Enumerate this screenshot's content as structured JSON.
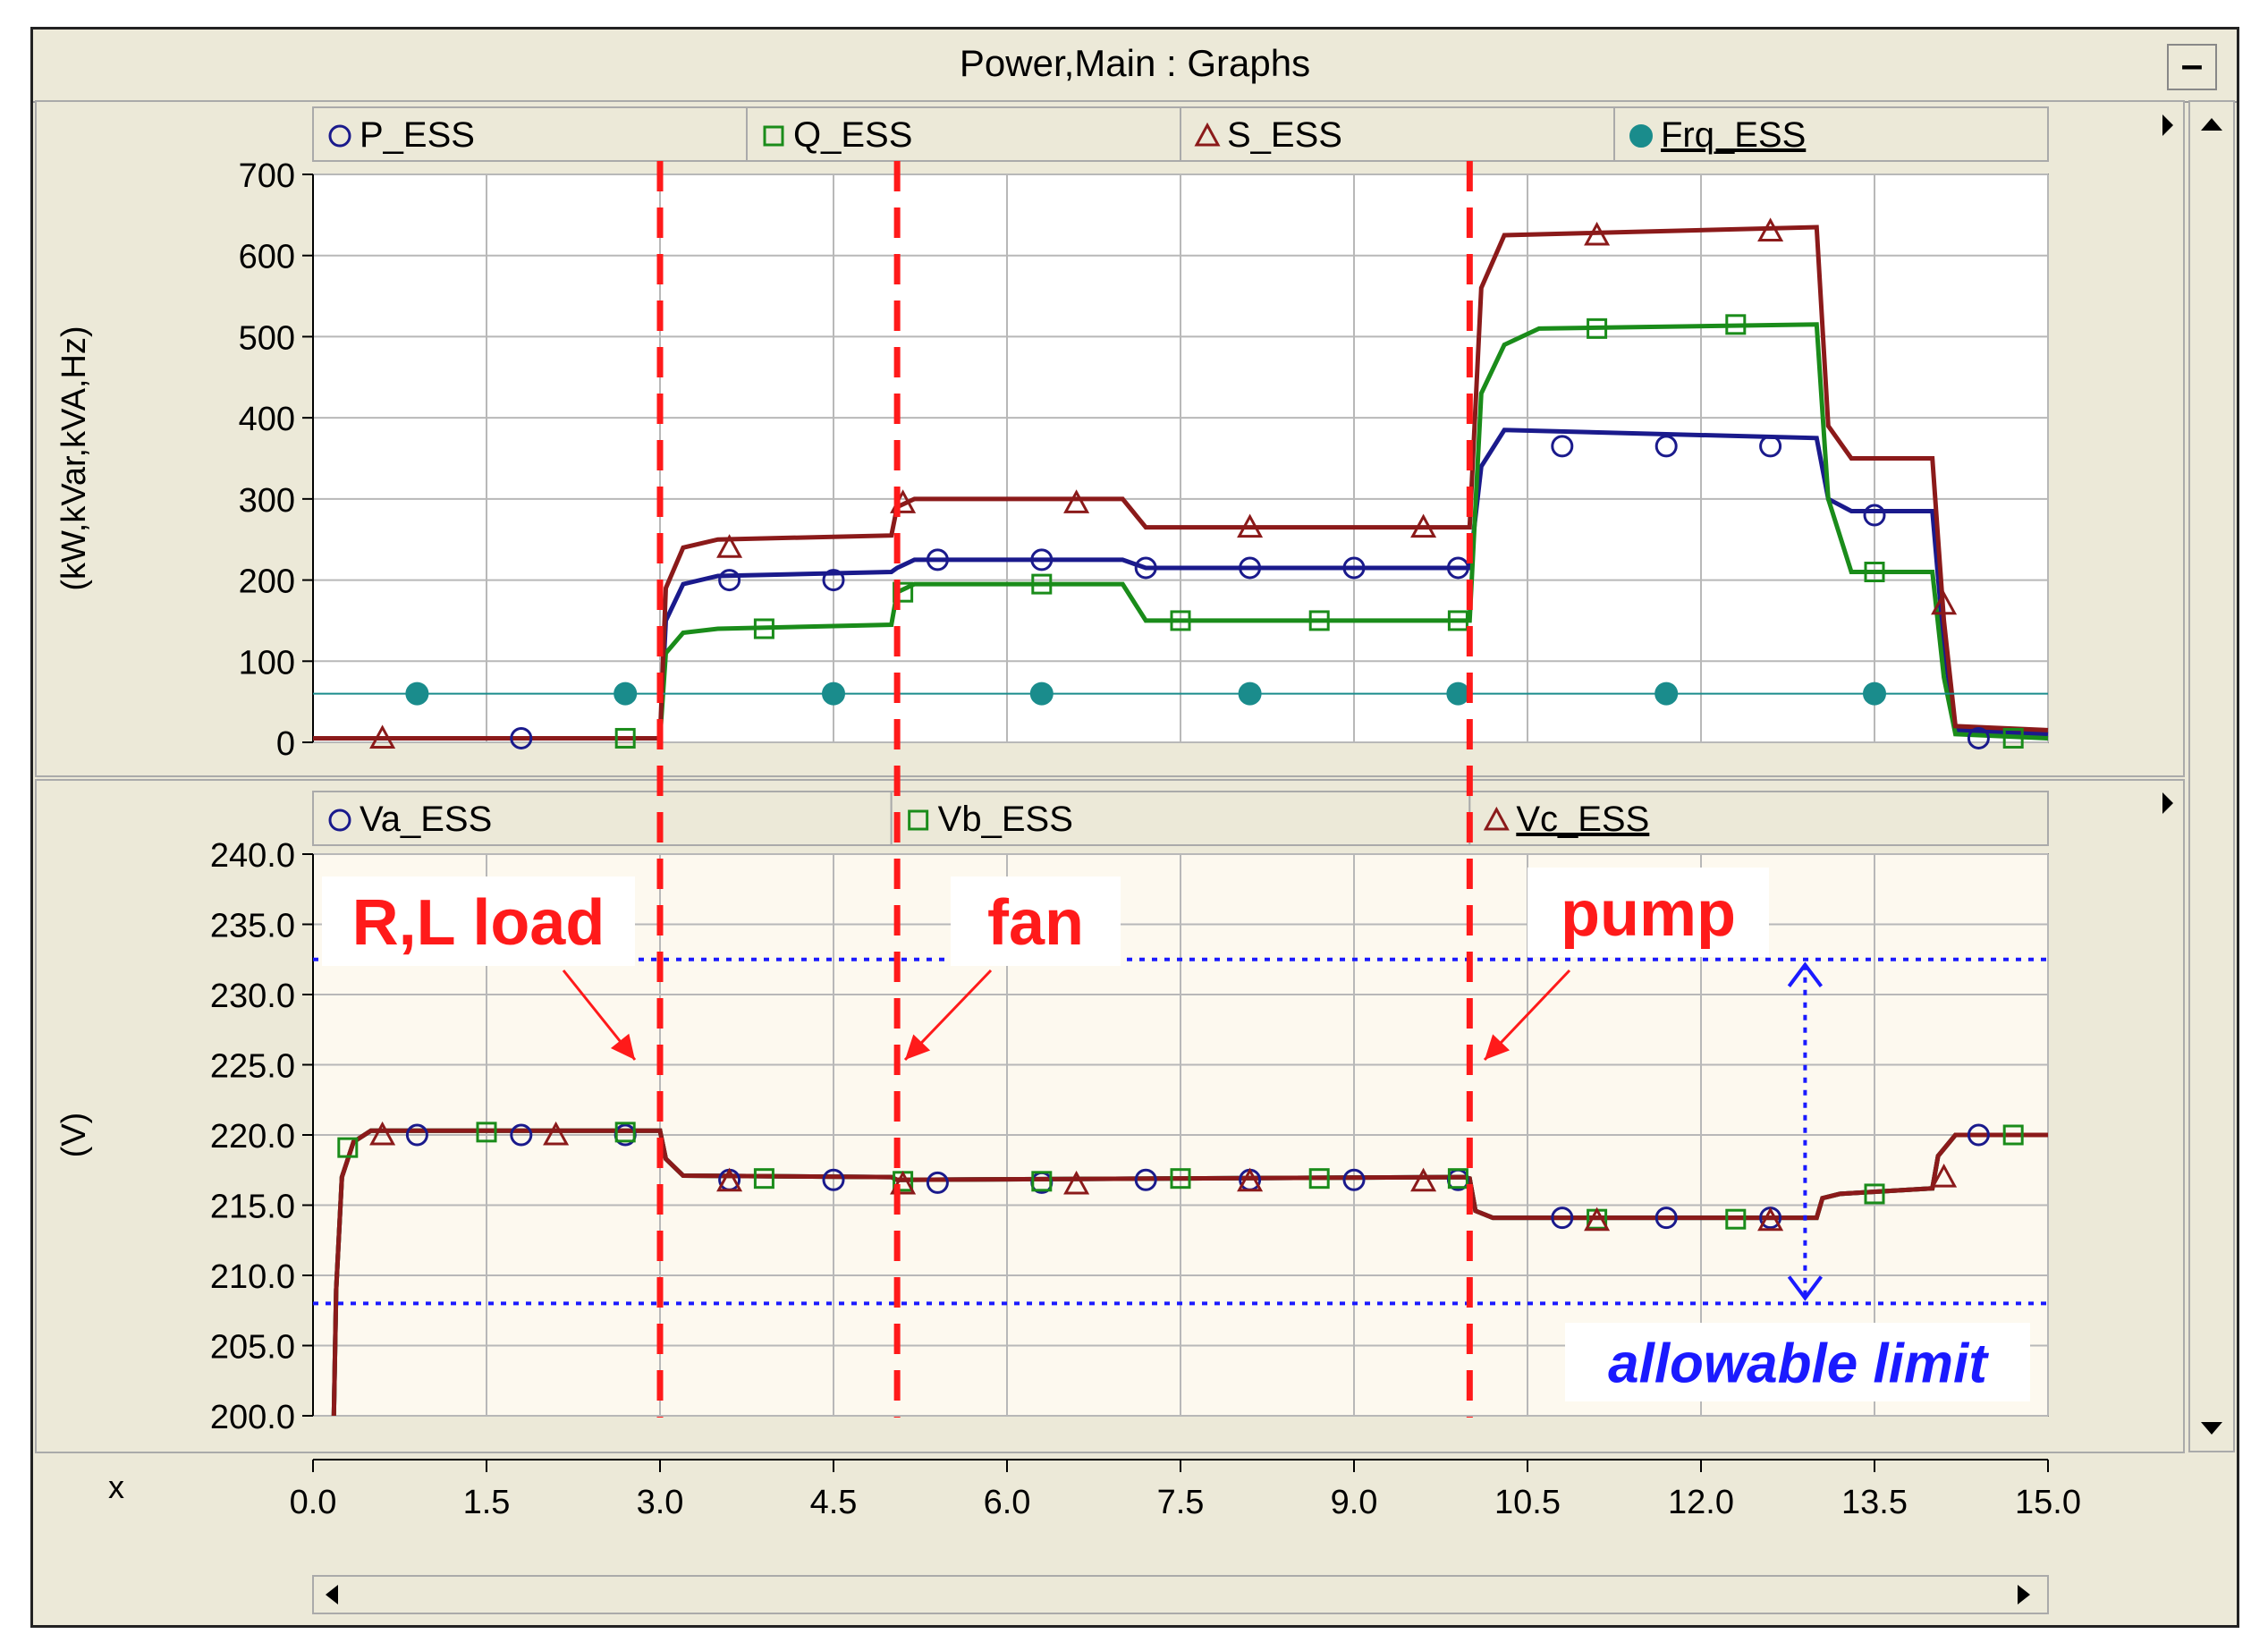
{
  "window": {
    "title": "Power,Main : Graphs",
    "minimize_label": "–"
  },
  "chart_data": [
    {
      "type": "line",
      "ylabel": "(kW,kVar,kVA,Hz)",
      "ylim": [
        0,
        700
      ],
      "yticks": [
        "700",
        "600",
        "500",
        "400",
        "300",
        "200",
        "100",
        "0"
      ],
      "ytick_values": [
        700,
        600,
        500,
        400,
        300,
        200,
        100,
        0
      ],
      "xlim": [
        0,
        15
      ],
      "grid": true,
      "legend_position": "top",
      "series": [
        {
          "name": "P_ESS",
          "color": "#1a1a8c",
          "marker": "circle-open",
          "x": [
            0,
            3.0,
            3.05,
            3.2,
            3.5,
            5.0,
            5.05,
            5.2,
            7.0,
            7.2,
            9.95,
            10.0,
            10.1,
            10.3,
            13.0,
            13.1,
            13.3,
            14.0,
            14.1,
            14.2,
            15.0
          ],
          "y": [
            5,
            5,
            150,
            195,
            205,
            210,
            215,
            225,
            225,
            215,
            215,
            215,
            340,
            385,
            375,
            300,
            285,
            285,
            120,
            15,
            10
          ]
        },
        {
          "name": "Q_ESS",
          "color": "#1a8c1a",
          "marker": "square-open",
          "x": [
            0,
            3.0,
            3.05,
            3.2,
            3.5,
            5.0,
            5.05,
            5.2,
            7.0,
            7.2,
            9.95,
            10.0,
            10.1,
            10.3,
            10.6,
            13.0,
            13.1,
            13.3,
            14.0,
            14.1,
            14.2,
            15.0
          ],
          "y": [
            5,
            5,
            110,
            135,
            140,
            145,
            185,
            195,
            195,
            150,
            150,
            150,
            430,
            490,
            510,
            515,
            300,
            210,
            210,
            80,
            10,
            5
          ]
        },
        {
          "name": "S_ESS",
          "color": "#8b1a1a",
          "marker": "triangle-open",
          "x": [
            0,
            3.0,
            3.05,
            3.2,
            3.5,
            5.0,
            5.05,
            5.2,
            7.0,
            7.2,
            9.95,
            10.0,
            10.1,
            10.3,
            13.0,
            13.1,
            13.3,
            14.0,
            14.1,
            14.2,
            15.0
          ],
          "y": [
            5,
            5,
            190,
            240,
            250,
            255,
            290,
            300,
            300,
            265,
            265,
            265,
            560,
            625,
            635,
            390,
            350,
            350,
            150,
            20,
            15
          ]
        },
        {
          "name": "Frq_ESS",
          "color": "#1a8c8c",
          "marker": "circle-filled",
          "x": [
            0,
            15
          ],
          "y": [
            60,
            60
          ]
        }
      ],
      "markers": {
        "P_ESS": {
          "x": [
            1.8,
            3.6,
            4.5,
            5.4,
            6.3,
            7.2,
            8.1,
            9.0,
            9.9,
            10.8,
            11.7,
            12.6,
            13.5,
            14.4
          ],
          "y": [
            5,
            200,
            200,
            225,
            225,
            215,
            215,
            215,
            215,
            365,
            365,
            365,
            280,
            5
          ]
        },
        "Q_ESS": {
          "x": [
            2.7,
            3.9,
            5.1,
            6.3,
            7.5,
            8.7,
            9.9,
            11.1,
            12.3,
            13.5,
            14.7
          ],
          "y": [
            5,
            140,
            185,
            195,
            150,
            150,
            150,
            510,
            515,
            210,
            5
          ]
        },
        "S_ESS": {
          "x": [
            0.6,
            3.6,
            5.1,
            6.6,
            8.1,
            9.6,
            11.1,
            12.6,
            14.1
          ],
          "y": [
            5,
            240,
            295,
            295,
            265,
            265,
            625,
            630,
            170
          ]
        },
        "Frq_ESS": {
          "x": [
            0.9,
            2.7,
            4.5,
            6.3,
            8.1,
            9.9,
            11.7,
            13.5
          ],
          "y": [
            60,
            60,
            60,
            60,
            60,
            60,
            60,
            60
          ]
        }
      }
    },
    {
      "type": "line",
      "ylabel": "(V)",
      "ylim": [
        200,
        240
      ],
      "yticks": [
        "240.0",
        "235.0",
        "230.0",
        "225.0",
        "220.0",
        "215.0",
        "210.0",
        "205.0",
        "200.0"
      ],
      "ytick_values": [
        240,
        235,
        230,
        225,
        220,
        215,
        210,
        205,
        200
      ],
      "xlim": [
        0,
        15
      ],
      "xlabel": "x",
      "xticks": [
        "0.0",
        "1.5",
        "3.0",
        "4.5",
        "6.0",
        "7.5",
        "9.0",
        "10.5",
        "12.0",
        "13.5",
        "15.0"
      ],
      "xtick_values": [
        0,
        1.5,
        3,
        4.5,
        6,
        7.5,
        9,
        10.5,
        12,
        13.5,
        15
      ],
      "grid": true,
      "legend_position": "top",
      "series": [
        {
          "name": "Va_ESS",
          "color": "#1a1a8c",
          "marker": "circle-open",
          "x": [
            0.18,
            0.2,
            0.25,
            0.35,
            0.5,
            3.0,
            3.05,
            3.2,
            5.0,
            5.05,
            9.95,
            10.0,
            10.05,
            10.2,
            13.0,
            13.05,
            13.2,
            14.0,
            14.05,
            14.2,
            15.0
          ],
          "y": [
            200,
            209,
            217,
            219.5,
            220.3,
            220.3,
            218.3,
            217.1,
            217,
            216.8,
            217,
            216.9,
            214.6,
            214.1,
            214.1,
            215.5,
            215.8,
            216.2,
            218.5,
            220,
            220
          ]
        },
        {
          "name": "Vb_ESS",
          "color": "#1a8c1a",
          "marker": "square-open",
          "x": [
            0.18,
            0.2,
            0.25,
            0.35,
            0.5,
            3.0,
            3.05,
            3.2,
            5.0,
            5.05,
            9.95,
            10.0,
            10.05,
            10.2,
            13.0,
            13.05,
            13.2,
            14.0,
            14.05,
            14.2,
            15.0
          ],
          "y": [
            200,
            209,
            217,
            219.5,
            220.3,
            220.3,
            218.3,
            217.1,
            217,
            216.8,
            217,
            216.9,
            214.6,
            214.1,
            214.1,
            215.5,
            215.8,
            216.2,
            218.5,
            220,
            220
          ]
        },
        {
          "name": "Vc_ESS",
          "color": "#8b1a1a",
          "marker": "triangle-open",
          "x": [
            0.18,
            0.2,
            0.25,
            0.35,
            0.5,
            3.0,
            3.05,
            3.2,
            5.0,
            5.05,
            9.95,
            10.0,
            10.05,
            10.2,
            13.0,
            13.05,
            13.2,
            14.0,
            14.05,
            14.2,
            15.0
          ],
          "y": [
            200,
            209,
            217,
            219.5,
            220.3,
            220.3,
            218.3,
            217.1,
            217,
            216.8,
            217,
            216.9,
            214.6,
            214.1,
            214.1,
            215.5,
            215.8,
            216.2,
            218.5,
            220,
            220
          ]
        }
      ],
      "markers": {
        "Va_ESS": {
          "x": [
            0.9,
            1.8,
            2.7,
            3.6,
            4.5,
            5.4,
            6.3,
            7.2,
            8.1,
            9.0,
            9.9,
            10.8,
            11.7,
            12.6,
            14.4
          ],
          "y": [
            220,
            220,
            220,
            216.8,
            216.8,
            216.6,
            216.6,
            216.8,
            216.8,
            216.8,
            216.8,
            214.1,
            214.1,
            214.1,
            220
          ]
        },
        "Vb_ESS": {
          "x": [
            0.3,
            1.5,
            2.7,
            3.9,
            5.1,
            6.3,
            7.5,
            8.7,
            9.9,
            11.1,
            12.3,
            13.5,
            14.7
          ],
          "y": [
            219.1,
            220.2,
            220.2,
            216.9,
            216.7,
            216.7,
            216.9,
            216.9,
            216.9,
            214,
            214,
            215.8,
            220
          ]
        },
        "Vc_ESS": {
          "x": [
            0.6,
            2.1,
            3.6,
            5.1,
            6.6,
            8.1,
            9.6,
            11.1,
            12.6,
            14.1
          ],
          "y": [
            220,
            220,
            216.7,
            216.5,
            216.5,
            216.7,
            216.7,
            213.9,
            213.9,
            217
          ]
        }
      },
      "limits": {
        "upper": 232.5,
        "lower": 208
      },
      "annotations": {
        "rl_load": "R,L load",
        "fan": "fan",
        "pump": "pump",
        "allowable_limit": "allowable limit"
      }
    }
  ],
  "events": {
    "x": [
      3.0,
      5.05,
      10.0
    ],
    "color": "#ff1a1a"
  },
  "colors": {
    "panel_bg": "#ece9d8",
    "plot_bg_top": "#ffffff",
    "plot_bg_bottom": "#fdf9ef",
    "grid": "#b8b8b8",
    "event_line": "#ff1a1a",
    "limit_line": "#1a1aff",
    "annotation_text": "#ff1a1a",
    "limit_text": "#1a1aff",
    "frq_line": "#1a8c8c"
  }
}
